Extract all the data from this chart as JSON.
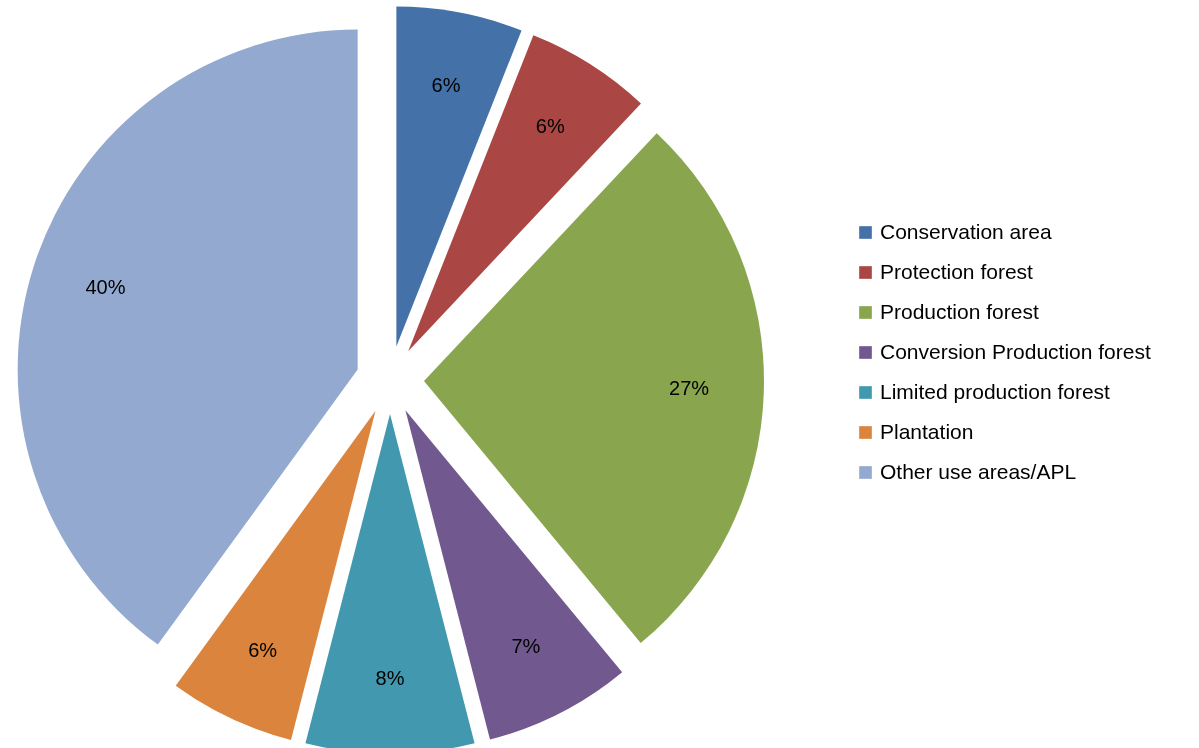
{
  "chart_data": {
    "type": "pie",
    "categories": [
      "Conservation area",
      "Protection forest",
      "Production forest",
      "Conversion Production forest",
      "Limited production forest",
      "Plantation",
      "Other use areas/APL"
    ],
    "values": [
      6,
      6,
      27,
      7,
      8,
      6,
      40
    ],
    "colors": [
      "#4472a8",
      "#aa4643",
      "#89a54e",
      "#71588f",
      "#4198af",
      "#db843d",
      "#93a9cf"
    ],
    "value_labels": [
      "6%",
      "6%",
      "27%",
      "7%",
      "8%",
      "6%",
      "40%"
    ],
    "legend": "right"
  }
}
